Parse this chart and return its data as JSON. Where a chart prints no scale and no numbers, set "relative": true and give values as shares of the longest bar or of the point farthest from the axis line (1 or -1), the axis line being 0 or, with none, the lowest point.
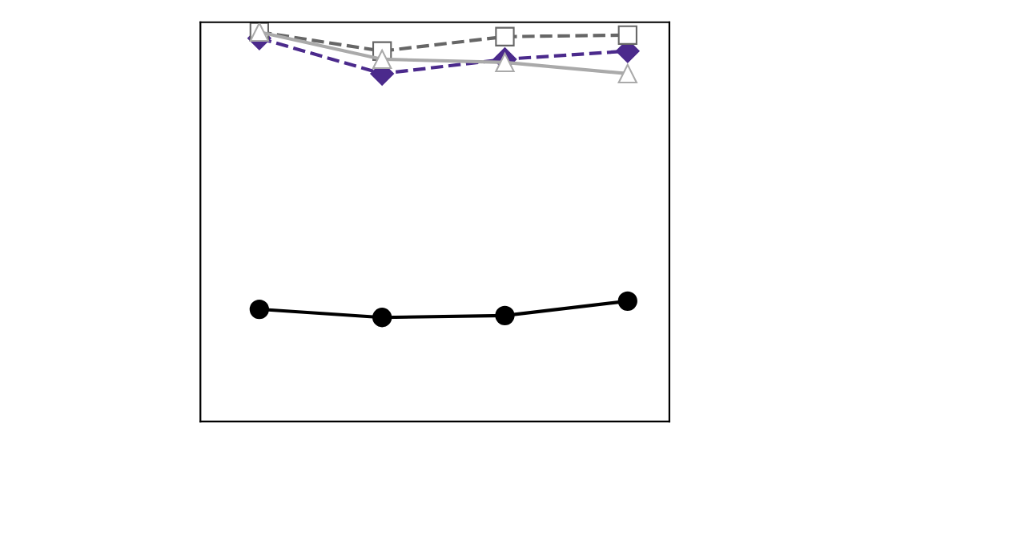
{
  "chart_data": {
    "type": "line",
    "relative": true,
    "categories": [
      null,
      null,
      null,
      null
    ],
    "series": [
      {
        "color": "#000000",
        "marker": "circle",
        "line_style": "solid",
        "values": [
          0.288,
          0.267,
          0.272,
          0.309
        ]
      },
      {
        "color": "#4b2a8c",
        "marker": "diamond",
        "line_style": "dashed",
        "values": [
          0.984,
          0.893,
          0.93,
          0.951
        ]
      },
      {
        "color": "#666666",
        "marker": "square",
        "line_style": "dashed",
        "values": [
          1,
          0.951,
          0.988,
          0.992
        ]
      },
      {
        "color": "#aaaaaa",
        "marker": "triangle",
        "line_style": "solid",
        "values": [
          1,
          0.93,
          0.922,
          0.893
        ]
      }
    ]
  }
}
